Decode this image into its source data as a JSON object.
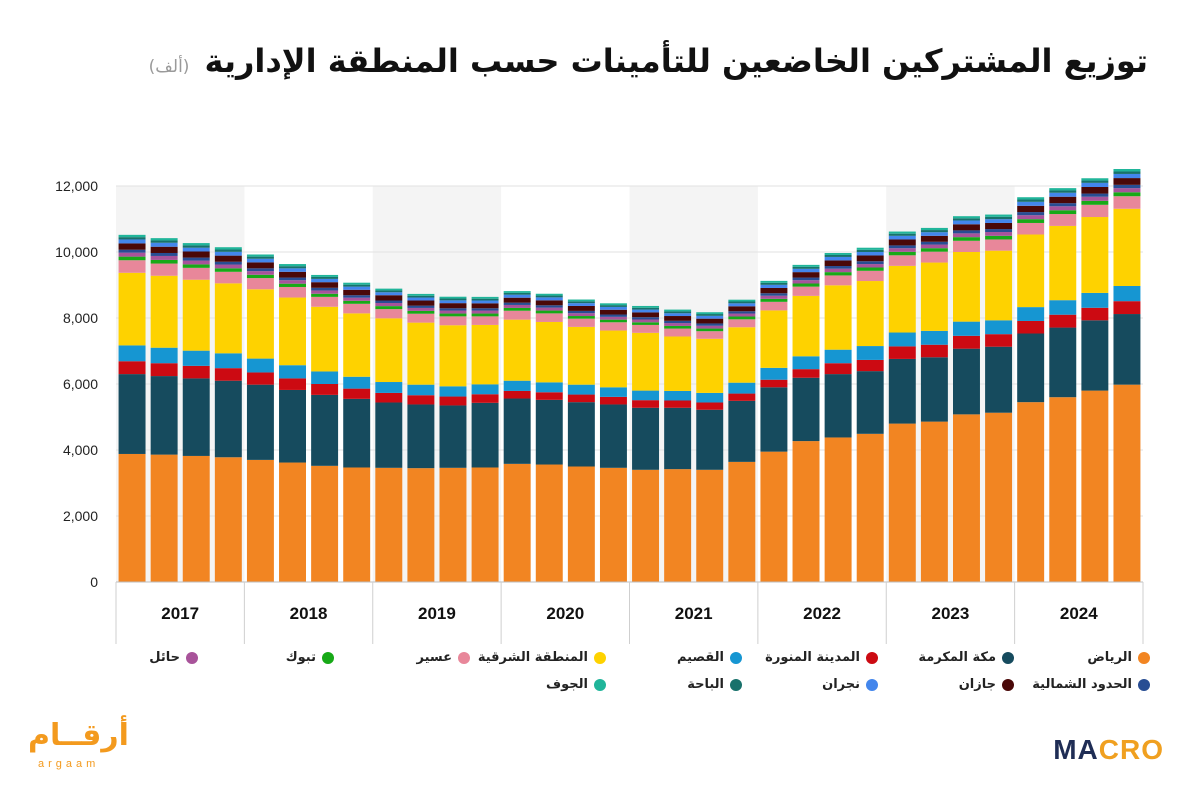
{
  "title": "توزيع المشتركين الخاضعين للتأمينات حسب المنطقة الإدارية",
  "unit": "(ألف)",
  "logos": {
    "left_ar": "أرقــام",
    "left_en": "argaam",
    "right_a": "MA",
    "right_b": "CRO"
  },
  "chart_data": {
    "type": "bar",
    "stacked": true,
    "ylim": [
      0,
      12000
    ],
    "yticks": [
      0,
      2000,
      4000,
      6000,
      8000,
      10000,
      12000
    ],
    "ytick_labels": [
      "0",
      "2,000",
      "4,000",
      "6,000",
      "8,000",
      "10,000",
      "12,000"
    ],
    "years": [
      "2017",
      "2018",
      "2019",
      "2020",
      "2021",
      "2022",
      "2023",
      "2024"
    ],
    "periods_per_year": 4,
    "series": [
      {
        "name": "الرياض",
        "color": "#f28522",
        "values": [
          3880,
          3860,
          3820,
          3780,
          3700,
          3620,
          3520,
          3470,
          3460,
          3450,
          3460,
          3470,
          3580,
          3560,
          3500,
          3460,
          3400,
          3420,
          3400,
          3640,
          3950,
          4270,
          4380,
          4490,
          4800,
          4860,
          5080,
          5130,
          5450,
          5600,
          5800,
          5980
        ]
      },
      {
        "name": "مكة المكرمة",
        "color": "#164b5e",
        "values": [
          2420,
          2380,
          2350,
          2320,
          2280,
          2200,
          2150,
          2080,
          1980,
          1930,
          1890,
          1960,
          1980,
          1960,
          1950,
          1920,
          1880,
          1860,
          1820,
          1850,
          1950,
          1920,
          1920,
          1900,
          1960,
          1950,
          1990,
          2000,
          2080,
          2110,
          2130,
          2140
        ]
      },
      {
        "name": "المدينة المنورة",
        "color": "#cc0a12",
        "values": [
          390,
          390,
          380,
          380,
          370,
          350,
          330,
          310,
          290,
          280,
          270,
          260,
          230,
          230,
          230,
          230,
          230,
          220,
          220,
          220,
          230,
          260,
          330,
          340,
          380,
          380,
          390,
          380,
          380,
          390,
          380,
          390
        ]
      },
      {
        "name": "القصيم",
        "color": "#1696d2",
        "values": [
          480,
          470,
          460,
          450,
          420,
          400,
          380,
          360,
          330,
          320,
          310,
          300,
          310,
          300,
          300,
          290,
          290,
          290,
          290,
          330,
          360,
          390,
          410,
          420,
          420,
          420,
          430,
          420,
          420,
          440,
          450,
          460
        ]
      },
      {
        "name": "المنطقة الشرقية",
        "color": "#fed200",
        "values": [
          2200,
          2180,
          2150,
          2120,
          2100,
          2050,
          1960,
          1920,
          1930,
          1880,
          1850,
          1800,
          1850,
          1830,
          1750,
          1720,
          1750,
          1650,
          1640,
          1680,
          1740,
          1830,
          1950,
          1970,
          2020,
          2070,
          2110,
          2110,
          2200,
          2250,
          2300,
          2340
        ]
      },
      {
        "name": "عسير",
        "color": "#e8879a",
        "values": [
          380,
          370,
          360,
          350,
          340,
          320,
          300,
          290,
          280,
          270,
          270,
          260,
          270,
          260,
          250,
          250,
          240,
          240,
          230,
          240,
          260,
          280,
          300,
          310,
          320,
          330,
          340,
          340,
          350,
          360,
          370,
          380
        ]
      },
      {
        "name": "تبوك",
        "color": "#17a917",
        "values": [
          110,
          110,
          105,
          105,
          100,
          100,
          95,
          90,
          90,
          85,
          85,
          85,
          85,
          85,
          80,
          80,
          80,
          80,
          80,
          85,
          90,
          95,
          100,
          100,
          105,
          105,
          110,
          110,
          115,
          115,
          120,
          120
        ]
      },
      {
        "name": "حائل",
        "color": "#a8539a",
        "values": [
          120,
          120,
          115,
          115,
          110,
          105,
          100,
          95,
          95,
          90,
          90,
          90,
          90,
          90,
          85,
          85,
          85,
          85,
          85,
          90,
          95,
          100,
          105,
          105,
          110,
          110,
          115,
          115,
          120,
          120,
          125,
          125
        ]
      },
      {
        "name": "الحدود الشمالية",
        "color": "#284d93",
        "values": [
          90,
          90,
          90,
          85,
          85,
          80,
          80,
          75,
          75,
          70,
          70,
          70,
          70,
          70,
          70,
          70,
          70,
          70,
          70,
          70,
          75,
          80,
          80,
          85,
          85,
          85,
          90,
          90,
          95,
          95,
          95,
          100
        ]
      },
      {
        "name": "جازان",
        "color": "#4a0808",
        "values": [
          190,
          190,
          185,
          185,
          180,
          175,
          170,
          165,
          160,
          155,
          155,
          150,
          150,
          150,
          150,
          145,
          145,
          145,
          145,
          150,
          160,
          165,
          170,
          175,
          180,
          180,
          185,
          185,
          190,
          195,
          200,
          205
        ]
      },
      {
        "name": "نجران",
        "color": "#4386ec",
        "values": [
          120,
          120,
          115,
          115,
          110,
          105,
          100,
          95,
          90,
          90,
          85,
          85,
          90,
          90,
          85,
          85,
          85,
          85,
          85,
          90,
          95,
          100,
          105,
          105,
          110,
          110,
          115,
          115,
          120,
          120,
          125,
          125
        ]
      },
      {
        "name": "الباحة",
        "color": "#18716b",
        "values": [
          70,
          70,
          70,
          70,
          65,
          65,
          60,
          60,
          55,
          55,
          55,
          55,
          55,
          55,
          55,
          55,
          55,
          55,
          55,
          55,
          60,
          60,
          60,
          65,
          65,
          65,
          65,
          70,
          70,
          70,
          70,
          75
        ]
      },
      {
        "name": "الجوف",
        "color": "#20b59a",
        "values": [
          70,
          70,
          70,
          70,
          65,
          65,
          60,
          60,
          55,
          55,
          55,
          55,
          55,
          55,
          55,
          55,
          55,
          55,
          55,
          55,
          60,
          60,
          60,
          65,
          65,
          65,
          65,
          70,
          70,
          70,
          70,
          75
        ]
      }
    ]
  }
}
